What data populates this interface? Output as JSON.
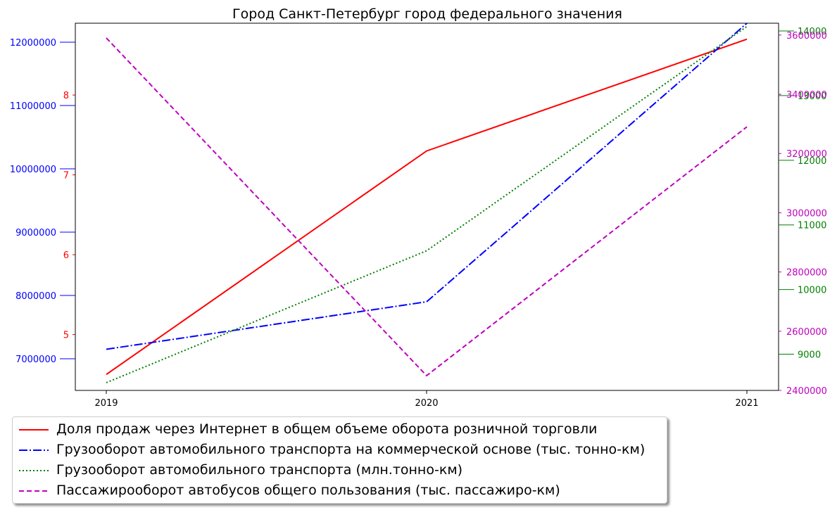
{
  "chart_data": {
    "type": "line",
    "title": "Город Санкт-Петербург город федерального значения",
    "categories": [
      "2019",
      "2020",
      "2021"
    ],
    "series": [
      {
        "name": "Доля продаж через Интернет в общем объеме оборота розничной торговли",
        "values": [
          4.5,
          7.3,
          8.7
        ],
        "color": "#ff0000",
        "dash": "solid",
        "axis": "left_inner",
        "ylim": [
          4.3,
          8.9
        ],
        "ticks": [
          5,
          6,
          7,
          8
        ]
      },
      {
        "name": "Грузооборот автомобильного транспорта на коммерческой основе (тыс. тонно-км)",
        "values": [
          7150000,
          7900000,
          12300000
        ],
        "color": "#0000ff",
        "dash": "dashdot",
        "axis": "left_outer",
        "ylim": [
          6500000,
          12300000
        ],
        "ticks": [
          7000000,
          8000000,
          9000000,
          10000000,
          11000000,
          12000000
        ]
      },
      {
        "name": "Грузооборот автомобильного транспорта (млн.тонно-км)",
        "values": [
          8560,
          10600,
          14070
        ],
        "color": "#008000",
        "dash": "dotted",
        "axis": "right_outer",
        "ylim": [
          8440,
          14120
        ],
        "ticks": [
          9000,
          10000,
          11000,
          12000,
          13000,
          14000
        ]
      },
      {
        "name": "Пассажирооборот автобусов общего пользования (тыс. пассажиро-км)",
        "values": [
          3590000,
          2450000,
          3290000
        ],
        "color": "#bf00bf",
        "dash": "dashed",
        "axis": "right_inner",
        "ylim": [
          2400000,
          3640000
        ],
        "ticks": [
          2400000,
          2600000,
          2800000,
          3000000,
          3200000,
          3400000,
          3600000
        ]
      }
    ],
    "axis_colors": {
      "left_outer": "#0000ff",
      "left_inner": "#ff0000",
      "right_inner": "#bf00bf",
      "right_outer": "#008000"
    },
    "grid": false,
    "legend_position": "below"
  }
}
